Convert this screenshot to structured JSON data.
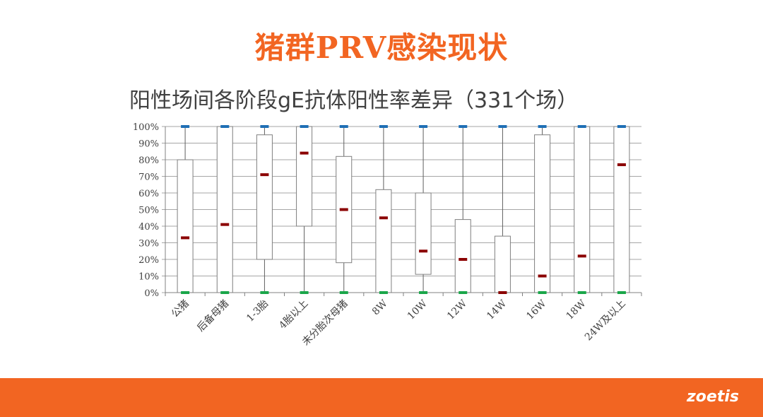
{
  "slide": {
    "title": "猪群PRV感染现状",
    "logo": "zoetis",
    "accent_color": "#f26522"
  },
  "chart_data": {
    "type": "box",
    "title": "阳性场间各阶段gE抗体阳性率差异（331个场）",
    "xlabel": "",
    "ylabel": "",
    "ylim": [
      0,
      100
    ],
    "yticks": [
      "0%",
      "10%",
      "20%",
      "30%",
      "40%",
      "50%",
      "60%",
      "70%",
      "80%",
      "90%",
      "100%"
    ],
    "grid": true,
    "categories": [
      "公猪",
      "后备母猪",
      "1-3胎",
      "4胎以上",
      "未分胎次母猪",
      "8W",
      "10W",
      "12W",
      "14W",
      "16W",
      "18W",
      "24W及以上"
    ],
    "max": [
      100,
      100,
      100,
      100,
      100,
      100,
      100,
      100,
      100,
      100,
      100,
      100
    ],
    "q3": [
      80,
      100,
      95,
      100,
      82,
      62,
      60,
      44,
      34,
      95,
      100,
      100
    ],
    "median": [
      33,
      41,
      71,
      84,
      50,
      45,
      25,
      20,
      0,
      10,
      22,
      77
    ],
    "q1": [
      0,
      0,
      20,
      40,
      18,
      0,
      11,
      0,
      0,
      0,
      0,
      0
    ],
    "min": [
      0,
      0,
      0,
      0,
      0,
      0,
      0,
      0,
      0,
      0,
      0,
      0
    ],
    "colors": {
      "max_marker": "#1f6fb5",
      "median_marker": "#8b0000",
      "min_marker": "#1aa64a",
      "box_stroke": "#7f7f7f",
      "grid": "#a6a6a6"
    }
  }
}
